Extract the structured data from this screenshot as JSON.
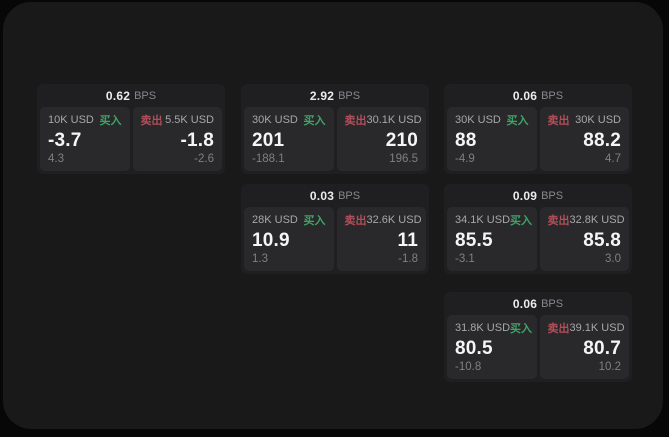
{
  "labels": {
    "bps_suffix": "BPS",
    "buy": "买入",
    "sell": "卖出"
  },
  "colors": {
    "buy_green": "#3fa366",
    "sell_red": "#b24d5a",
    "surface": "#19191a",
    "card": "#1f1f21",
    "panel": "#29292b"
  },
  "cards": [
    {
      "bps": "0.62",
      "buy": {
        "amount": "10K USD",
        "price": "-3.7",
        "sub": "4.3"
      },
      "sell": {
        "amount": "5.5K USD",
        "price": "-1.8",
        "sub": "-2.6"
      }
    },
    {
      "bps": "2.92",
      "buy": {
        "amount": "30K USD",
        "price": "201",
        "sub": "-188.1"
      },
      "sell": {
        "amount": "30.1K USD",
        "price": "210",
        "sub": "196.5"
      }
    },
    {
      "bps": "0.06",
      "buy": {
        "amount": "30K USD",
        "price": "88",
        "sub": "-4.9"
      },
      "sell": {
        "amount": "30K USD",
        "price": "88.2",
        "sub": "4.7"
      }
    },
    {
      "bps": "0.03",
      "buy": {
        "amount": "28K USD",
        "price": "10.9",
        "sub": "1.3"
      },
      "sell": {
        "amount": "32.6K USD",
        "price": "11",
        "sub": "-1.8"
      }
    },
    {
      "bps": "0.09",
      "buy": {
        "amount": "34.1K USD",
        "price": "85.5",
        "sub": "-3.1"
      },
      "sell": {
        "amount": "32.8K USD",
        "price": "85.8",
        "sub": "3.0"
      }
    },
    {
      "bps": "0.06",
      "buy": {
        "amount": "31.8K USD",
        "price": "80.5",
        "sub": "-10.8"
      },
      "sell": {
        "amount": "39.1K USD",
        "price": "80.7",
        "sub": "10.2"
      }
    }
  ]
}
